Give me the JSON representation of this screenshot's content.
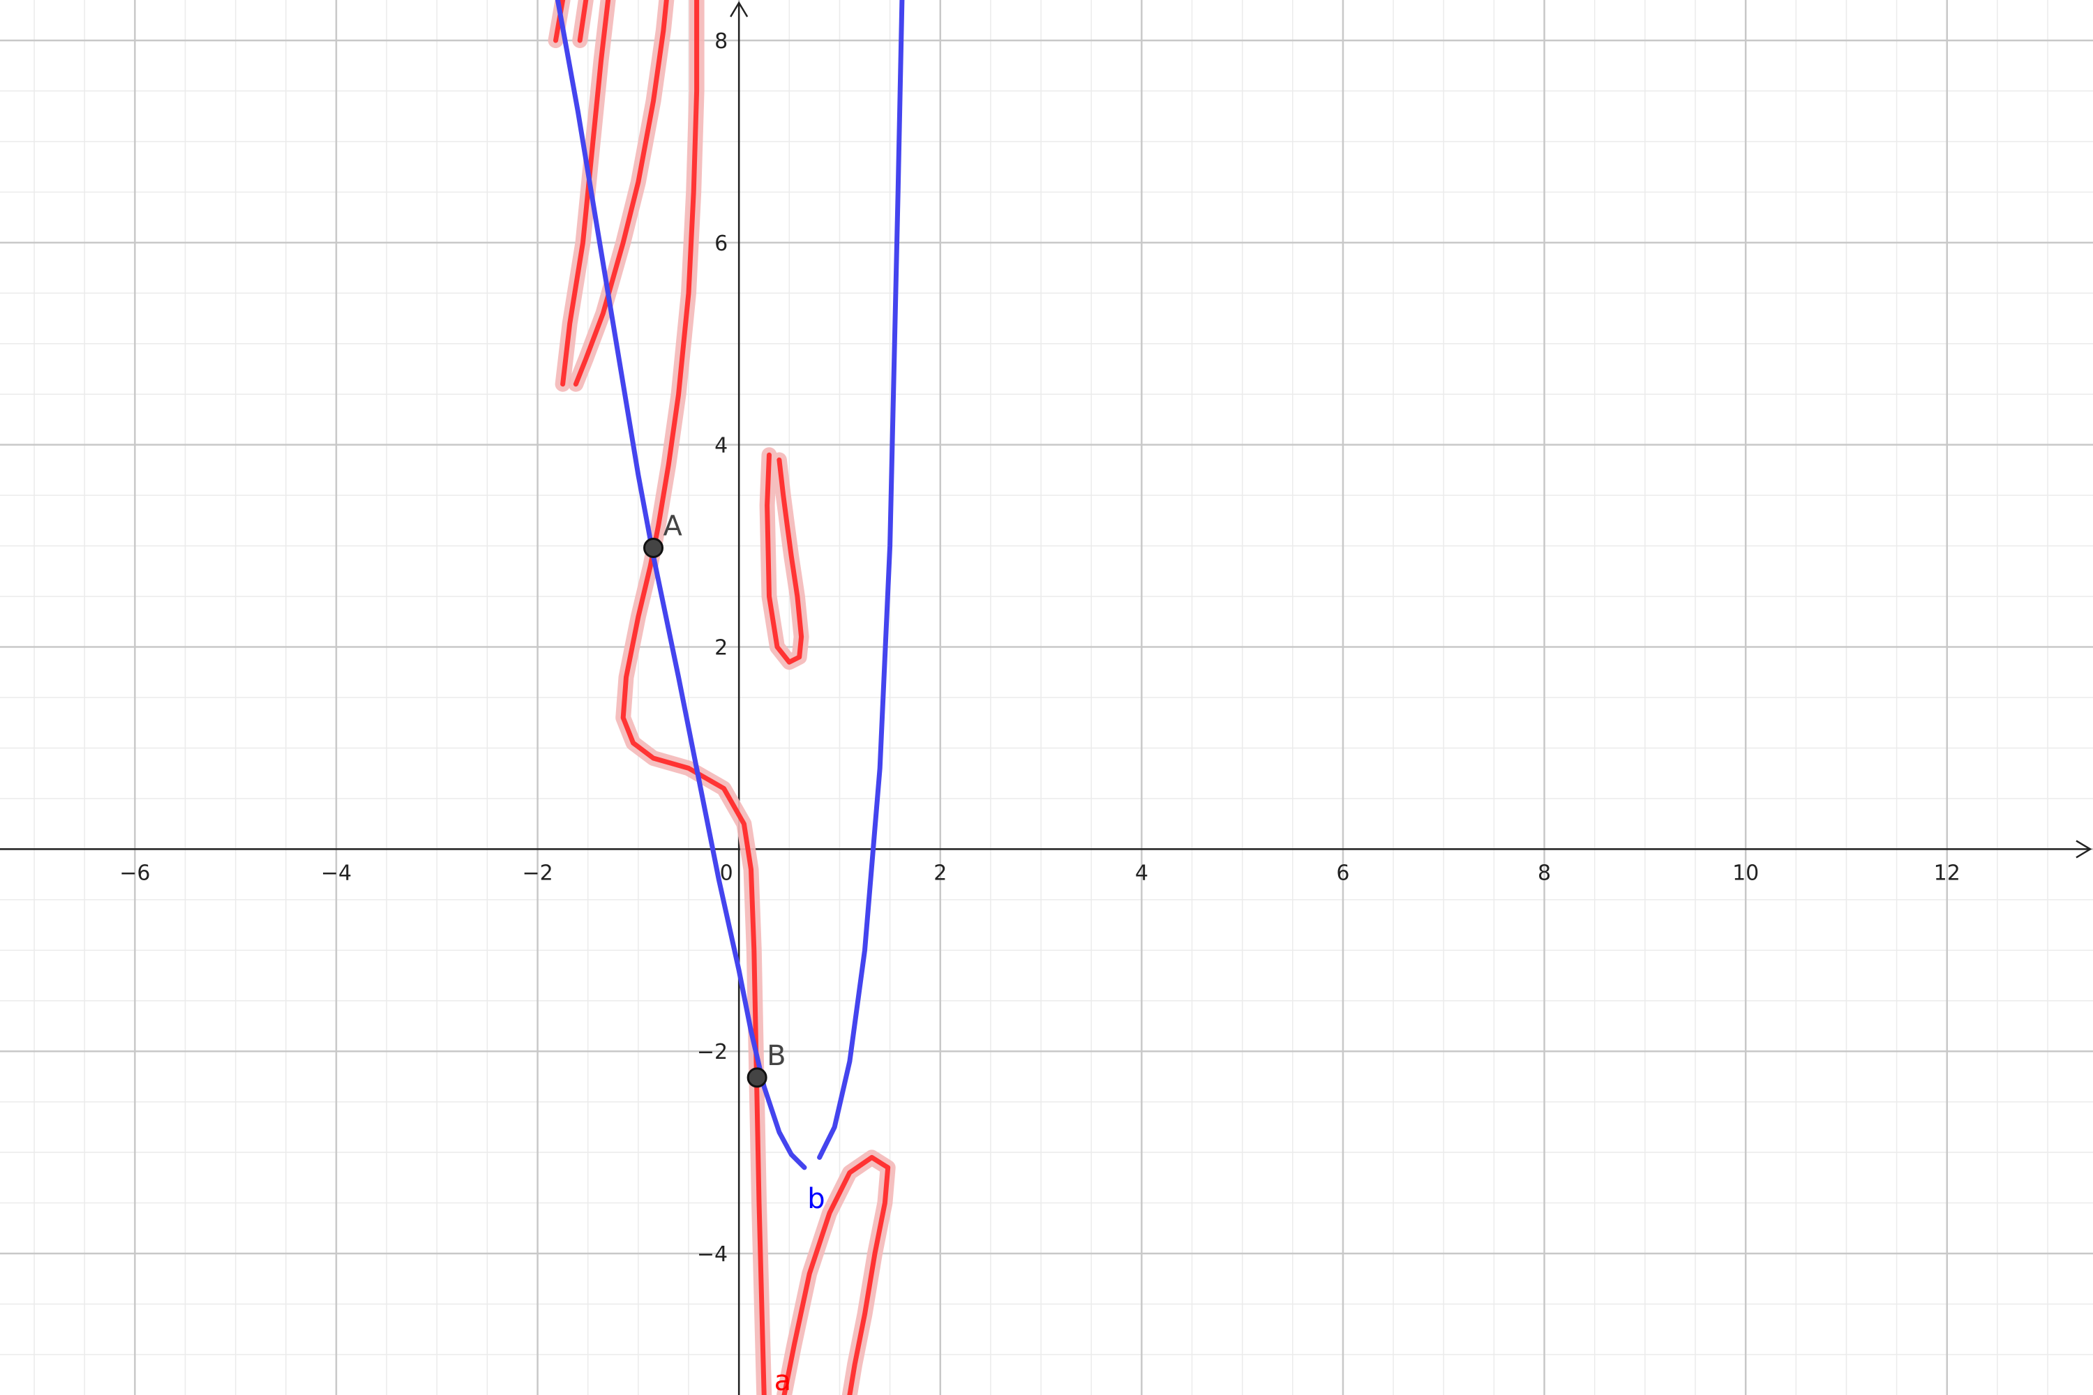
{
  "chart_data": {
    "type": "line",
    "title": "",
    "xlabel": "",
    "ylabel": "",
    "xlim": [
      -7.34,
      13.45
    ],
    "ylim": [
      -5.4,
      8.4
    ],
    "grid": true,
    "x_ticks": [
      {
        "value": -6,
        "label": "−6"
      },
      {
        "value": -4,
        "label": "−4"
      },
      {
        "value": -2,
        "label": "−2"
      },
      {
        "value": 0,
        "label": "0"
      },
      {
        "value": 2,
        "label": "2"
      },
      {
        "value": 4,
        "label": "4"
      },
      {
        "value": 6,
        "label": "6"
      },
      {
        "value": 8,
        "label": "8"
      },
      {
        "value": 10,
        "label": "10"
      },
      {
        "value": 12,
        "label": "12"
      }
    ],
    "y_ticks": [
      {
        "value": 8,
        "label": "8"
      },
      {
        "value": 6,
        "label": "6"
      },
      {
        "value": 4,
        "label": "4"
      },
      {
        "value": 2,
        "label": "2"
      },
      {
        "value": -2,
        "label": "−2"
      },
      {
        "value": -4,
        "label": "−4"
      }
    ],
    "series": [
      {
        "name": "a",
        "color": "#ff3333",
        "halo_color": "#f4b8b8",
        "paths": [
          [
            [
              -1.82,
              8.0
            ],
            [
              -1.75,
              8.4
            ]
          ],
          [
            [
              -1.58,
              8.0
            ],
            [
              -1.52,
              8.4
            ]
          ],
          [
            [
              -1.75,
              4.6
            ],
            [
              -1.68,
              5.2
            ],
            [
              -1.55,
              6.0
            ],
            [
              -1.45,
              7.0
            ],
            [
              -1.37,
              7.8
            ],
            [
              -1.3,
              8.4
            ]
          ],
          [
            [
              -1.62,
              4.6
            ],
            [
              -1.52,
              4.85
            ],
            [
              -1.35,
              5.3
            ],
            [
              -1.15,
              6.0
            ],
            [
              -1.0,
              6.6
            ],
            [
              -0.85,
              7.4
            ],
            [
              -0.75,
              8.1
            ],
            [
              -0.72,
              8.4
            ]
          ],
          [
            [
              0.25,
              -5.4
            ],
            [
              0.2,
              -3.5
            ],
            [
              0.15,
              -1.0
            ],
            [
              0.12,
              -0.2
            ],
            [
              0.05,
              0.25
            ],
            [
              -0.15,
              0.6
            ],
            [
              -0.5,
              0.8
            ],
            [
              -0.85,
              0.9
            ],
            [
              -1.05,
              1.05
            ],
            [
              -1.15,
              1.3
            ],
            [
              -1.12,
              1.7
            ],
            [
              -1.0,
              2.3
            ],
            [
              -0.88,
              2.8
            ],
            [
              -0.8,
              3.2
            ],
            [
              -0.7,
              3.8
            ],
            [
              -0.6,
              4.5
            ],
            [
              -0.5,
              5.5
            ],
            [
              -0.45,
              6.5
            ],
            [
              -0.42,
              7.5
            ],
            [
              -0.42,
              8.4
            ]
          ],
          [
            [
              0.3,
              3.9
            ],
            [
              0.28,
              3.4
            ],
            [
              0.3,
              2.5
            ],
            [
              0.38,
              2.0
            ],
            [
              0.5,
              1.85
            ],
            [
              0.6,
              1.9
            ],
            [
              0.62,
              2.1
            ],
            [
              0.58,
              2.5
            ],
            [
              0.52,
              2.9
            ],
            [
              0.48,
              3.2
            ],
            [
              0.44,
              3.5
            ],
            [
              0.4,
              3.85
            ]
          ],
          [
            [
              0.45,
              -5.4
            ],
            [
              0.55,
              -4.9
            ],
            [
              0.7,
              -4.2
            ],
            [
              0.9,
              -3.6
            ],
            [
              1.1,
              -3.2
            ],
            [
              1.32,
              -3.05
            ],
            [
              1.48,
              -3.15
            ],
            [
              1.45,
              -3.5
            ],
            [
              1.35,
              -4.0
            ],
            [
              1.25,
              -4.6
            ],
            [
              1.15,
              -5.1
            ],
            [
              1.1,
              -5.4
            ]
          ]
        ]
      },
      {
        "name": "b",
        "color": "#4444ee",
        "paths": [
          [
            [
              -1.8,
              8.4
            ],
            [
              -1.6,
              7.3
            ],
            [
              -1.4,
              6.1
            ],
            [
              -1.2,
              4.9
            ],
            [
              -1.0,
              3.7
            ],
            [
              -0.85,
              2.9
            ],
            [
              -0.6,
              1.7
            ],
            [
              -0.4,
              0.7
            ],
            [
              -0.2,
              -0.3
            ],
            [
              0.0,
              -1.2
            ],
            [
              0.12,
              -1.8
            ],
            [
              0.25,
              -2.35
            ],
            [
              0.4,
              -2.8
            ],
            [
              0.52,
              -3.02
            ],
            [
              0.65,
              -3.15
            ]
          ],
          [
            [
              0.8,
              -3.05
            ],
            [
              0.95,
              -2.75
            ],
            [
              1.1,
              -2.1
            ],
            [
              1.25,
              -1.0
            ],
            [
              1.4,
              0.8
            ],
            [
              1.5,
              3.0
            ],
            [
              1.58,
              6.5
            ],
            [
              1.62,
              8.4
            ]
          ]
        ]
      }
    ],
    "points": [
      {
        "name": "A",
        "x": -0.85,
        "y": 2.98,
        "fill": "#444444"
      },
      {
        "name": "B",
        "x": 0.18,
        "y": -2.26,
        "fill": "#444444"
      }
    ],
    "curve_labels": [
      {
        "text": "a",
        "x": 0.35,
        "y": -5.35,
        "color": "#ff0000"
      },
      {
        "text": "b",
        "x": 0.68,
        "y": -3.55,
        "color": "#0000ff"
      }
    ]
  }
}
